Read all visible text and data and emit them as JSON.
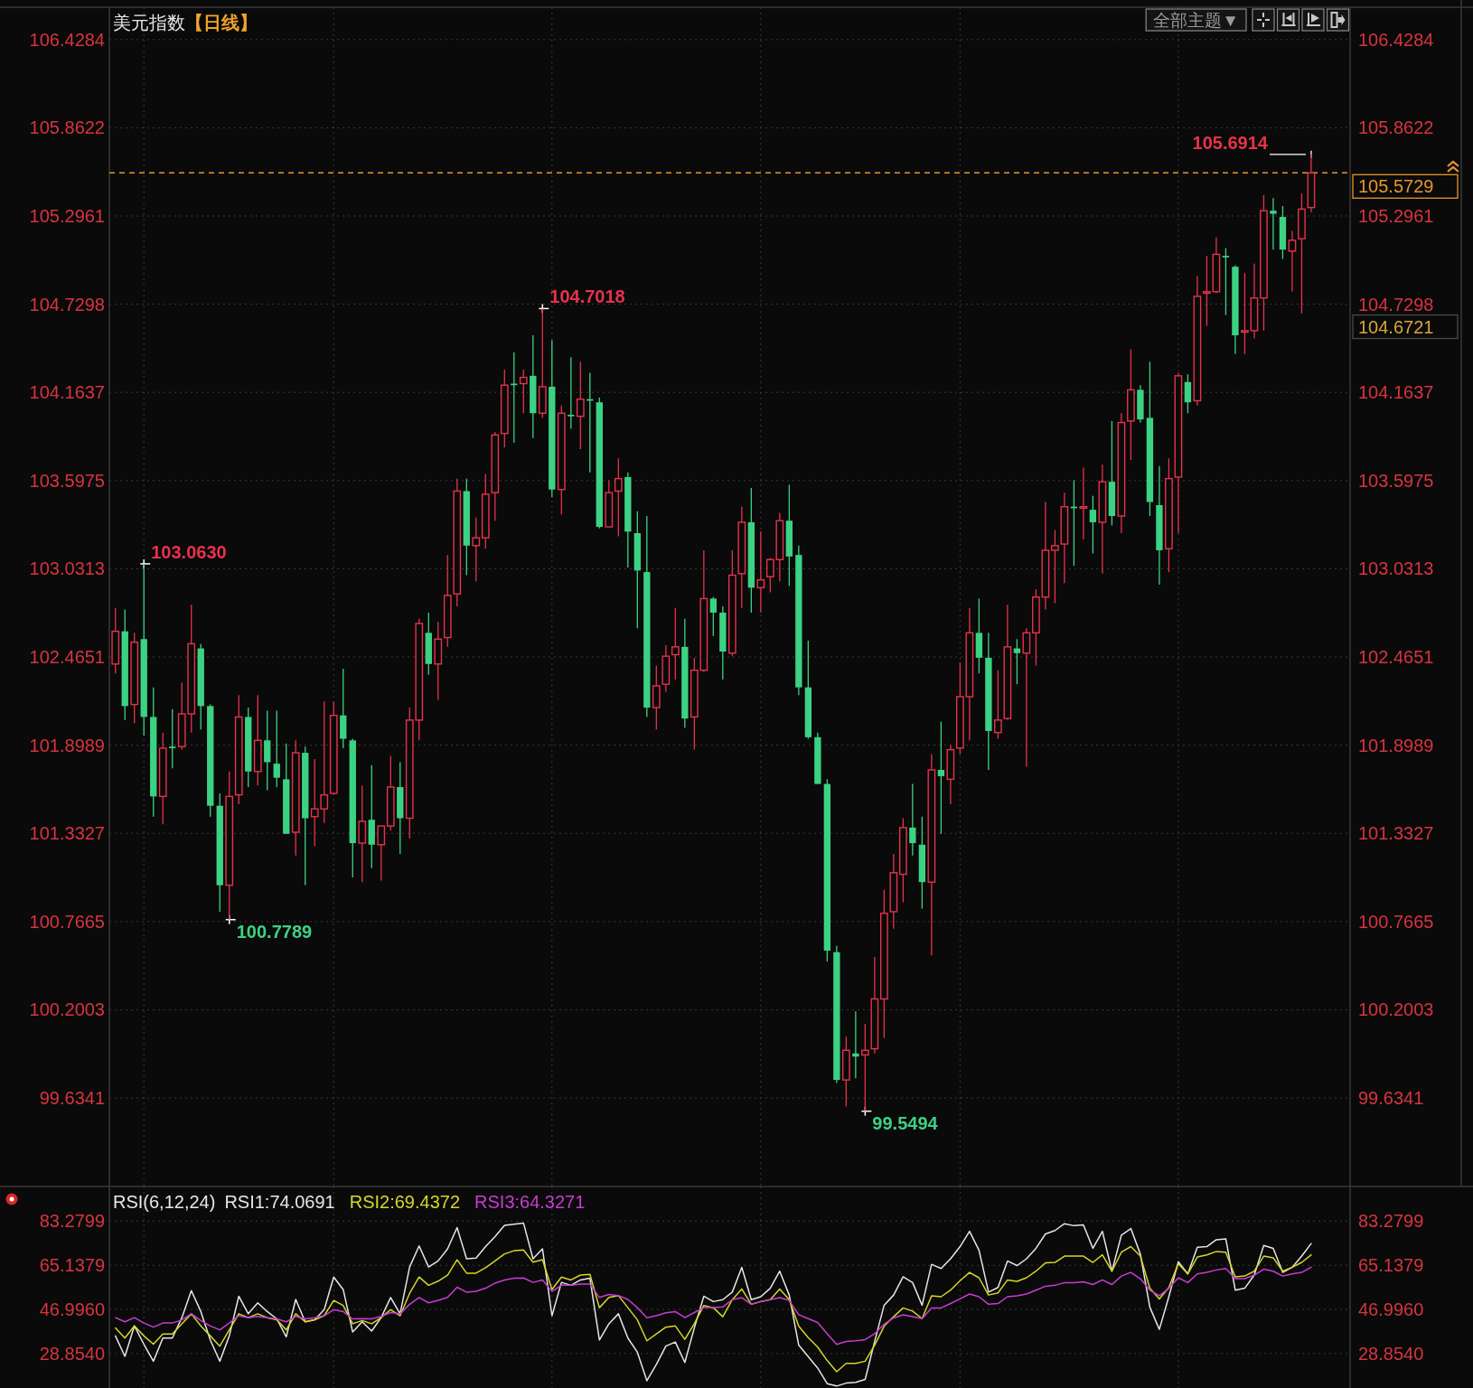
{
  "chart_data": [
    {
      "type": "candlestick",
      "title": "美元指数",
      "subtitle": "【日线】",
      "categories": [
        null,
        null,
        null,
        null,
        null,
        null,
        null,
        null,
        null,
        null,
        null,
        null,
        null,
        null,
        null,
        null,
        null,
        null,
        null,
        null,
        null,
        null,
        null,
        null,
        null,
        null,
        null,
        null,
        null,
        null,
        null,
        null,
        null,
        null,
        null,
        null,
        null,
        null,
        null,
        null,
        null,
        null,
        null,
        null,
        null,
        null,
        null,
        null,
        null,
        null,
        null,
        null,
        null,
        null,
        null,
        null,
        null,
        null,
        null,
        null,
        null,
        null,
        null,
        null,
        null,
        null,
        null,
        null,
        null,
        null,
        null,
        null,
        null,
        null,
        null,
        null,
        null,
        null,
        null,
        null,
        null,
        null,
        null,
        null,
        null,
        null,
        null,
        null,
        null,
        null,
        null,
        null,
        null,
        null,
        null,
        null,
        null,
        null,
        null,
        null,
        null,
        null,
        null,
        null,
        null,
        null,
        null,
        null,
        null,
        null,
        null,
        null,
        null,
        null,
        null,
        null,
        null,
        null,
        null,
        null,
        null,
        null,
        null,
        null,
        null,
        null,
        null
      ],
      "ohlc": [
        [
          102.42,
          102.78,
          102.36,
          102.63
        ],
        [
          102.63,
          102.77,
          102.06,
          102.15
        ],
        [
          102.16,
          102.62,
          102.04,
          102.56
        ],
        [
          102.58,
          103.063,
          101.96,
          102.08
        ],
        [
          102.08,
          102.27,
          101.44,
          101.57
        ],
        [
          101.57,
          101.98,
          101.39,
          101.88
        ],
        [
          101.89,
          102.13,
          101.75,
          101.88
        ],
        [
          101.89,
          102.3,
          101.87,
          102.1
        ],
        [
          102.1,
          102.8,
          101.98,
          102.55
        ],
        [
          102.52,
          102.55,
          102.0,
          102.15
        ],
        [
          102.15,
          102.16,
          101.44,
          101.51
        ],
        [
          101.51,
          101.59,
          100.83,
          101.0
        ],
        [
          101.0,
          101.73,
          100.7789,
          101.57
        ],
        [
          101.58,
          102.22,
          101.52,
          102.08
        ],
        [
          102.08,
          102.14,
          101.63,
          101.73
        ],
        [
          101.73,
          102.22,
          101.64,
          101.93
        ],
        [
          101.93,
          102.12,
          101.61,
          101.79
        ],
        [
          101.78,
          102.12,
          101.63,
          101.69
        ],
        [
          101.68,
          101.91,
          101.33,
          101.33
        ],
        [
          101.34,
          101.93,
          101.19,
          101.85
        ],
        [
          101.85,
          101.89,
          101.0,
          101.43
        ],
        [
          101.44,
          101.81,
          101.25,
          101.49
        ],
        [
          101.49,
          102.18,
          101.4,
          101.58
        ],
        [
          101.59,
          102.18,
          101.58,
          102.09
        ],
        [
          102.09,
          102.39,
          101.88,
          101.94
        ],
        [
          101.93,
          101.94,
          101.05,
          101.27
        ],
        [
          101.27,
          101.64,
          101.02,
          101.41
        ],
        [
          101.42,
          101.77,
          101.11,
          101.26
        ],
        [
          101.26,
          101.38,
          101.03,
          101.38
        ],
        [
          101.38,
          101.83,
          101.35,
          101.63
        ],
        [
          101.63,
          101.79,
          101.2,
          101.43
        ],
        [
          101.43,
          102.14,
          101.3,
          102.06
        ],
        [
          102.06,
          102.71,
          101.93,
          102.68
        ],
        [
          102.62,
          102.75,
          102.35,
          102.42
        ],
        [
          102.42,
          102.69,
          102.19,
          102.58
        ],
        [
          102.59,
          103.12,
          102.53,
          102.86
        ],
        [
          102.87,
          103.61,
          102.79,
          103.53
        ],
        [
          103.53,
          103.61,
          102.99,
          103.18
        ],
        [
          103.18,
          103.36,
          102.95,
          103.23
        ],
        [
          103.23,
          103.64,
          103.16,
          103.51
        ],
        [
          103.52,
          103.91,
          103.34,
          103.89
        ],
        [
          103.9,
          104.31,
          103.81,
          104.21
        ],
        [
          104.22,
          104.42,
          103.84,
          104.21
        ],
        [
          104.22,
          104.31,
          104.03,
          104.26
        ],
        [
          104.27,
          104.53,
          103.87,
          104.03
        ],
        [
          104.03,
          104.7018,
          104.0,
          104.2
        ],
        [
          104.2,
          104.5,
          103.49,
          103.54
        ],
        [
          103.54,
          104.08,
          103.38,
          104.03
        ],
        [
          104.02,
          104.39,
          103.93,
          104.01
        ],
        [
          104.01,
          104.36,
          103.8,
          104.12
        ],
        [
          104.12,
          104.29,
          103.65,
          104.11
        ],
        [
          104.1,
          104.13,
          103.29,
          103.3
        ],
        [
          103.3,
          103.6,
          103.3,
          103.52
        ],
        [
          103.53,
          103.74,
          103.24,
          103.61
        ],
        [
          103.62,
          103.65,
          103.04,
          103.27
        ],
        [
          103.26,
          103.4,
          102.65,
          103.02
        ],
        [
          103.01,
          103.37,
          102.08,
          102.14
        ],
        [
          102.14,
          102.41,
          102.0,
          102.28
        ],
        [
          102.29,
          102.54,
          102.24,
          102.47
        ],
        [
          102.48,
          102.78,
          102.32,
          102.53
        ],
        [
          102.53,
          102.71,
          102.01,
          102.07
        ],
        [
          102.08,
          102.46,
          101.87,
          102.38
        ],
        [
          102.38,
          103.15,
          102.37,
          102.84
        ],
        [
          102.84,
          102.85,
          102.6,
          102.75
        ],
        [
          102.75,
          102.79,
          102.32,
          102.5
        ],
        [
          102.49,
          103.15,
          102.47,
          102.99
        ],
        [
          103.0,
          103.43,
          102.78,
          103.33
        ],
        [
          103.33,
          103.55,
          102.75,
          102.91
        ],
        [
          102.91,
          103.27,
          102.75,
          102.96
        ],
        [
          102.98,
          103.1,
          102.88,
          103.09
        ],
        [
          103.09,
          103.39,
          102.95,
          103.34
        ],
        [
          103.34,
          103.57,
          102.92,
          103.11
        ],
        [
          103.12,
          103.18,
          102.22,
          102.27
        ],
        [
          102.27,
          102.57,
          101.94,
          101.95
        ],
        [
          101.95,
          101.98,
          101.65,
          101.65
        ],
        [
          101.65,
          101.68,
          100.51,
          100.58
        ],
        [
          100.57,
          100.61,
          99.73,
          99.75
        ],
        [
          99.75,
          100.03,
          99.58,
          99.94
        ],
        [
          99.92,
          100.19,
          99.76,
          99.9
        ],
        [
          99.91,
          100.11,
          99.5494,
          99.94
        ],
        [
          99.95,
          100.54,
          99.92,
          100.27
        ],
        [
          100.27,
          100.97,
          100.02,
          100.82
        ],
        [
          100.83,
          101.2,
          100.72,
          101.08
        ],
        [
          101.07,
          101.43,
          100.89,
          101.37
        ],
        [
          101.37,
          101.65,
          101.19,
          101.27
        ],
        [
          101.26,
          101.44,
          100.85,
          101.02
        ],
        [
          101.02,
          101.84,
          100.55,
          101.74
        ],
        [
          101.74,
          102.05,
          101.33,
          101.7
        ],
        [
          101.68,
          101.9,
          101.52,
          101.87
        ],
        [
          101.88,
          102.43,
          101.84,
          102.21
        ],
        [
          102.21,
          102.78,
          101.93,
          102.62
        ],
        [
          102.62,
          102.84,
          102.36,
          102.46
        ],
        [
          102.46,
          102.62,
          101.74,
          101.99
        ],
        [
          101.98,
          102.38,
          101.94,
          102.06
        ],
        [
          102.07,
          102.8,
          102.06,
          102.53
        ],
        [
          102.52,
          102.58,
          102.29,
          102.49
        ],
        [
          102.49,
          102.65,
          101.76,
          102.62
        ],
        [
          102.62,
          102.9,
          102.41,
          102.85
        ],
        [
          102.85,
          103.46,
          102.77,
          103.15
        ],
        [
          103.15,
          103.28,
          102.81,
          103.18
        ],
        [
          103.19,
          103.52,
          102.94,
          103.43
        ],
        [
          103.43,
          103.6,
          103.05,
          103.42
        ],
        [
          103.42,
          103.68,
          103.22,
          103.43
        ],
        [
          103.41,
          103.5,
          103.13,
          103.33
        ],
        [
          103.33,
          103.7,
          103.0,
          103.59
        ],
        [
          103.59,
          103.98,
          103.31,
          103.37
        ],
        [
          103.37,
          104.03,
          103.26,
          103.97
        ],
        [
          103.98,
          104.44,
          103.73,
          104.18
        ],
        [
          104.18,
          104.21,
          103.97,
          103.99
        ],
        [
          104.0,
          104.36,
          103.37,
          103.46
        ],
        [
          103.44,
          103.69,
          102.93,
          103.15
        ],
        [
          103.16,
          103.74,
          103.01,
          103.61
        ],
        [
          103.62,
          104.29,
          103.26,
          104.27
        ],
        [
          104.23,
          104.28,
          104.03,
          104.1
        ],
        [
          104.11,
          104.91,
          104.08,
          104.78
        ],
        [
          104.8,
          105.04,
          104.59,
          104.81
        ],
        [
          104.81,
          105.16,
          104.8,
          105.05
        ],
        [
          105.04,
          105.09,
          104.66,
          105.03
        ],
        [
          104.97,
          104.98,
          104.41,
          104.53
        ],
        [
          104.55,
          104.93,
          104.41,
          104.56
        ],
        [
          104.56,
          104.99,
          104.51,
          104.77
        ],
        [
          104.77,
          105.43,
          104.56,
          105.33
        ],
        [
          105.33,
          105.41,
          105.08,
          105.31
        ],
        [
          105.29,
          105.36,
          105.02,
          105.08
        ],
        [
          105.07,
          105.2,
          104.81,
          105.14
        ],
        [
          105.15,
          105.44,
          104.67,
          105.34
        ],
        [
          105.35,
          105.6914,
          105.32,
          105.5729
        ]
      ],
      "colors": [
        "#e8324b",
        "#3cd283",
        "#e8324b",
        "#3cd283",
        "#3cd283",
        "#e8324b",
        "#3cd283",
        "#e8324b",
        "#e8324b",
        "#3cd283",
        "#3cd283",
        "#3cd283",
        "#e8324b",
        "#e8324b",
        "#3cd283",
        "#e8324b",
        "#3cd283",
        "#3cd283",
        "#3cd283",
        "#e8324b",
        "#3cd283",
        "#e8324b",
        "#e8324b",
        "#e8324b",
        "#3cd283",
        "#3cd283",
        "#e8324b",
        "#3cd283",
        "#e8324b",
        "#e8324b",
        "#3cd283",
        "#e8324b",
        "#e8324b",
        "#3cd283",
        "#e8324b",
        "#e8324b",
        "#e8324b",
        "#3cd283",
        "#e8324b",
        "#e8324b",
        "#e8324b",
        "#e8324b",
        "#3cd283",
        "#e8324b",
        "#3cd283",
        "#e8324b",
        "#3cd283",
        "#e8324b",
        "#3cd283",
        "#e8324b",
        "#3cd283",
        "#3cd283",
        "#e8324b",
        "#e8324b",
        "#3cd283",
        "#3cd283",
        "#3cd283",
        "#e8324b",
        "#e8324b",
        "#e8324b",
        "#3cd283",
        "#e8324b",
        "#e8324b",
        "#3cd283",
        "#3cd283",
        "#e8324b",
        "#e8324b",
        "#3cd283",
        "#e8324b",
        "#e8324b",
        "#e8324b",
        "#3cd283",
        "#3cd283",
        "#3cd283",
        "#3cd283",
        "#3cd283",
        "#3cd283",
        "#e8324b",
        "#3cd283",
        "#e8324b",
        "#e8324b",
        "#e8324b",
        "#e8324b",
        "#e8324b",
        "#3cd283",
        "#3cd283",
        "#e8324b",
        "#3cd283",
        "#e8324b",
        "#e8324b",
        "#e8324b",
        "#3cd283",
        "#3cd283",
        "#e8324b",
        "#e8324b",
        "#3cd283",
        "#e8324b",
        "#e8324b",
        "#e8324b",
        "#e8324b",
        "#e8324b",
        "#3cd283",
        "#e8324b",
        "#3cd283",
        "#e8324b",
        "#3cd283",
        "#e8324b",
        "#e8324b",
        "#3cd283",
        "#3cd283",
        "#3cd283",
        "#e8324b",
        "#e8324b",
        "#3cd283",
        "#e8324b",
        "#e8324b",
        "#e8324b",
        "#3cd283",
        "#3cd283",
        "#e8324b",
        "#e8324b",
        "#e8324b",
        "#3cd283",
        "#3cd283",
        "#e8324b",
        "#e8324b",
        "#e8324b"
      ],
      "ylim": [
        99.066,
        106.636
      ],
      "yticks": [
        106.4284,
        105.8622,
        105.2961,
        104.7298,
        104.1637,
        103.5975,
        103.0313,
        102.4651,
        101.8989,
        101.3327,
        100.7665,
        100.2003,
        99.6341
      ],
      "y2lim": [
        99.066,
        106.636
      ],
      "y2ticks": [
        106.4284,
        105.8622,
        105.2961,
        104.7298,
        104.1637,
        103.5975,
        103.0313,
        102.4651,
        101.8989,
        101.3327,
        100.7665,
        100.2003,
        99.6341
      ],
      "grid": true,
      "ref_lines": [
        {
          "axis": "y",
          "value": 105.5729,
          "label": "105.5729",
          "color": "#e8962e",
          "line_style": "dashed"
        }
      ],
      "annotations": [
        "全部主题▼",
        "103.0630",
        "100.7789",
        "104.7018",
        "99.5494",
        "105.6914",
        "104.6721"
      ]
    },
    {
      "type": "line",
      "title": "RSI(6,12,24)",
      "categories": [
        null,
        null,
        null,
        null,
        null,
        null,
        null,
        null,
        null,
        null,
        null,
        null,
        null,
        null,
        null,
        null,
        null,
        null,
        null,
        null,
        null,
        null,
        null,
        null,
        null,
        null,
        null,
        null,
        null,
        null,
        null,
        null,
        null,
        null,
        null,
        null,
        null,
        null,
        null,
        null,
        null,
        null,
        null,
        null,
        null,
        null,
        null,
        null,
        null,
        null,
        null,
        null,
        null,
        null,
        null,
        null,
        null,
        null,
        null,
        null,
        null,
        null,
        null,
        null,
        null,
        null,
        null,
        null,
        null,
        null,
        null,
        null,
        null,
        null,
        null,
        null,
        null,
        null,
        null,
        null,
        null,
        null,
        null,
        null,
        null,
        null,
        null,
        null,
        null,
        null,
        null,
        null,
        null,
        null,
        null,
        null,
        null,
        null,
        null,
        null,
        null,
        null,
        null,
        null,
        null,
        null,
        null,
        null,
        null,
        null,
        null,
        null,
        null,
        null,
        null,
        null,
        null,
        null,
        null,
        null,
        null,
        null,
        null,
        null,
        null,
        null,
        null
      ],
      "series": [
        {
          "name": "RSI1:74.0691",
          "color": "#e6e6e6",
          "values": [
            36.1,
            27.7,
            40.2,
            32.7,
            25.7,
            35.2,
            35.2,
            43.6,
            54.7,
            46.1,
            34.4,
            25.7,
            36.1,
            52.4,
            45.2,
            49.7,
            46.1,
            43.1,
            35.7,
            51.1,
            41.9,
            42.7,
            46.9,
            60.3,
            55.2,
            37.7,
            41.9,
            38.1,
            43.6,
            51.9,
            45.2,
            64.4,
            73.1,
            64.4,
            66.9,
            71.9,
            80.6,
            67.8,
            68.1,
            72.8,
            76.9,
            81.5,
            82.0,
            82.5,
            67.8,
            71.9,
            44.4,
            58.1,
            56.9,
            59.1,
            59.8,
            34.4,
            41.1,
            45.2,
            35.2,
            29.4,
            17.7,
            24.4,
            31.9,
            33.6,
            25.2,
            39.4,
            52.4,
            50.2,
            51.0,
            54.1,
            64.3,
            51.0,
            52.2,
            55.7,
            62.7,
            52.9,
            32.3,
            27.6,
            22.9,
            16.5,
            15.5,
            16.7,
            17.0,
            18.2,
            33.8,
            48.7,
            52.9,
            60.4,
            58.0,
            48.7,
            65.5,
            63.8,
            67.8,
            72.8,
            79.1,
            71.3,
            54.1,
            56.0,
            66.9,
            65.0,
            67.8,
            72.1,
            78.0,
            79.4,
            82.2,
            81.4,
            81.7,
            72.1,
            79.1,
            62.7,
            77.5,
            80.2,
            69.7,
            47.9,
            38.8,
            52.2,
            66.6,
            61.6,
            72.5,
            72.8,
            75.6,
            76.0,
            54.9,
            55.7,
            61.1,
            73.3,
            72.1,
            62.2,
            64.3,
            68.9,
            74.0691
          ]
        },
        {
          "name": "RSI2:69.4372",
          "color": "#d6d626",
          "values": [
            39.4,
            35.2,
            40.2,
            36.1,
            32.7,
            36.9,
            36.9,
            41.1,
            45.2,
            40.2,
            36.1,
            31.9,
            38.6,
            45.2,
            43.6,
            45.2,
            43.6,
            42.7,
            38.6,
            45.2,
            41.9,
            42.7,
            44.4,
            50.7,
            48.6,
            41.1,
            42.4,
            41.1,
            43.6,
            46.9,
            44.4,
            53.6,
            60.3,
            56.9,
            58.6,
            61.1,
            67.4,
            61.9,
            61.9,
            64.1,
            66.9,
            69.8,
            71.1,
            71.4,
            66.4,
            67.4,
            55.2,
            60.3,
            59.1,
            61.1,
            61.4,
            47.7,
            51.9,
            52.7,
            47.7,
            42.7,
            34.1,
            36.9,
            39.7,
            40.2,
            34.7,
            41.1,
            48.6,
            47.7,
            44.0,
            51.0,
            55.4,
            49.1,
            50.2,
            51.0,
            55.4,
            51.0,
            40.1,
            35.4,
            31.5,
            26.0,
            21.4,
            24.8,
            24.8,
            25.7,
            32.3,
            40.1,
            44.0,
            47.6,
            46.3,
            43.2,
            52.6,
            52.2,
            54.9,
            58.8,
            62.2,
            60.0,
            52.9,
            53.8,
            59.1,
            58.5,
            60.0,
            62.7,
            66.1,
            66.3,
            68.9,
            68.9,
            68.9,
            66.3,
            69.4,
            62.7,
            70.5,
            72.8,
            68.9,
            55.7,
            51.3,
            56.0,
            65.8,
            61.6,
            68.5,
            69.4,
            70.8,
            70.5,
            60.4,
            60.7,
            62.7,
            68.9,
            68.2,
            62.7,
            64.3,
            66.3,
            69.4372
          ]
        },
        {
          "name": "RSI3:64.3271",
          "color": "#c83cd2",
          "values": [
            43.6,
            41.9,
            43.6,
            41.4,
            39.7,
            41.4,
            41.4,
            42.7,
            45.2,
            42.4,
            40.2,
            38.6,
            41.4,
            44.4,
            43.6,
            44.1,
            43.6,
            43.1,
            41.9,
            44.1,
            43.1,
            43.6,
            44.4,
            46.9,
            46.1,
            43.1,
            43.2,
            43.1,
            44.1,
            45.7,
            45.2,
            49.1,
            51.9,
            49.7,
            50.7,
            51.9,
            56.1,
            54.1,
            54.4,
            55.7,
            57.8,
            59.1,
            59.8,
            59.9,
            58.1,
            59.1,
            54.4,
            56.9,
            56.9,
            57.4,
            57.4,
            51.9,
            53.1,
            52.7,
            51.1,
            47.7,
            43.6,
            44.4,
            45.6,
            46.1,
            43.6,
            45.7,
            47.7,
            47.7,
            48.0,
            51.0,
            51.8,
            49.1,
            50.2,
            51.0,
            51.8,
            50.7,
            44.8,
            43.2,
            41.6,
            37.0,
            32.6,
            33.8,
            34.1,
            34.6,
            37.0,
            40.9,
            43.5,
            44.8,
            44.0,
            43.2,
            47.6,
            47.6,
            49.4,
            51.3,
            53.3,
            52.2,
            49.1,
            49.4,
            52.2,
            52.6,
            53.3,
            54.9,
            56.5,
            56.9,
            58.0,
            58.0,
            58.3,
            57.2,
            59.1,
            57.2,
            60.7,
            62.2,
            59.6,
            54.9,
            52.6,
            55.7,
            60.0,
            58.0,
            61.6,
            62.2,
            63.2,
            63.8,
            59.6,
            59.6,
            61.1,
            63.5,
            62.7,
            60.7,
            61.6,
            62.2,
            64.3271
          ]
        }
      ],
      "ylim": [
        14.7,
        97.5
      ],
      "yticks": [
        {
          "value": 28.854,
          "label": "28.8540"
        },
        {
          "value": 46.996,
          "label": "46.9960"
        },
        65.1379,
        83.2799
      ],
      "y2lim": [
        14.7,
        97.5
      ],
      "y2ticks": [
        {
          "value": 28.854,
          "label": "28.8540"
        },
        {
          "value": 46.996,
          "label": "46.9960"
        },
        65.1379,
        83.2799
      ],
      "grid": true,
      "legend": "top left"
    }
  ]
}
